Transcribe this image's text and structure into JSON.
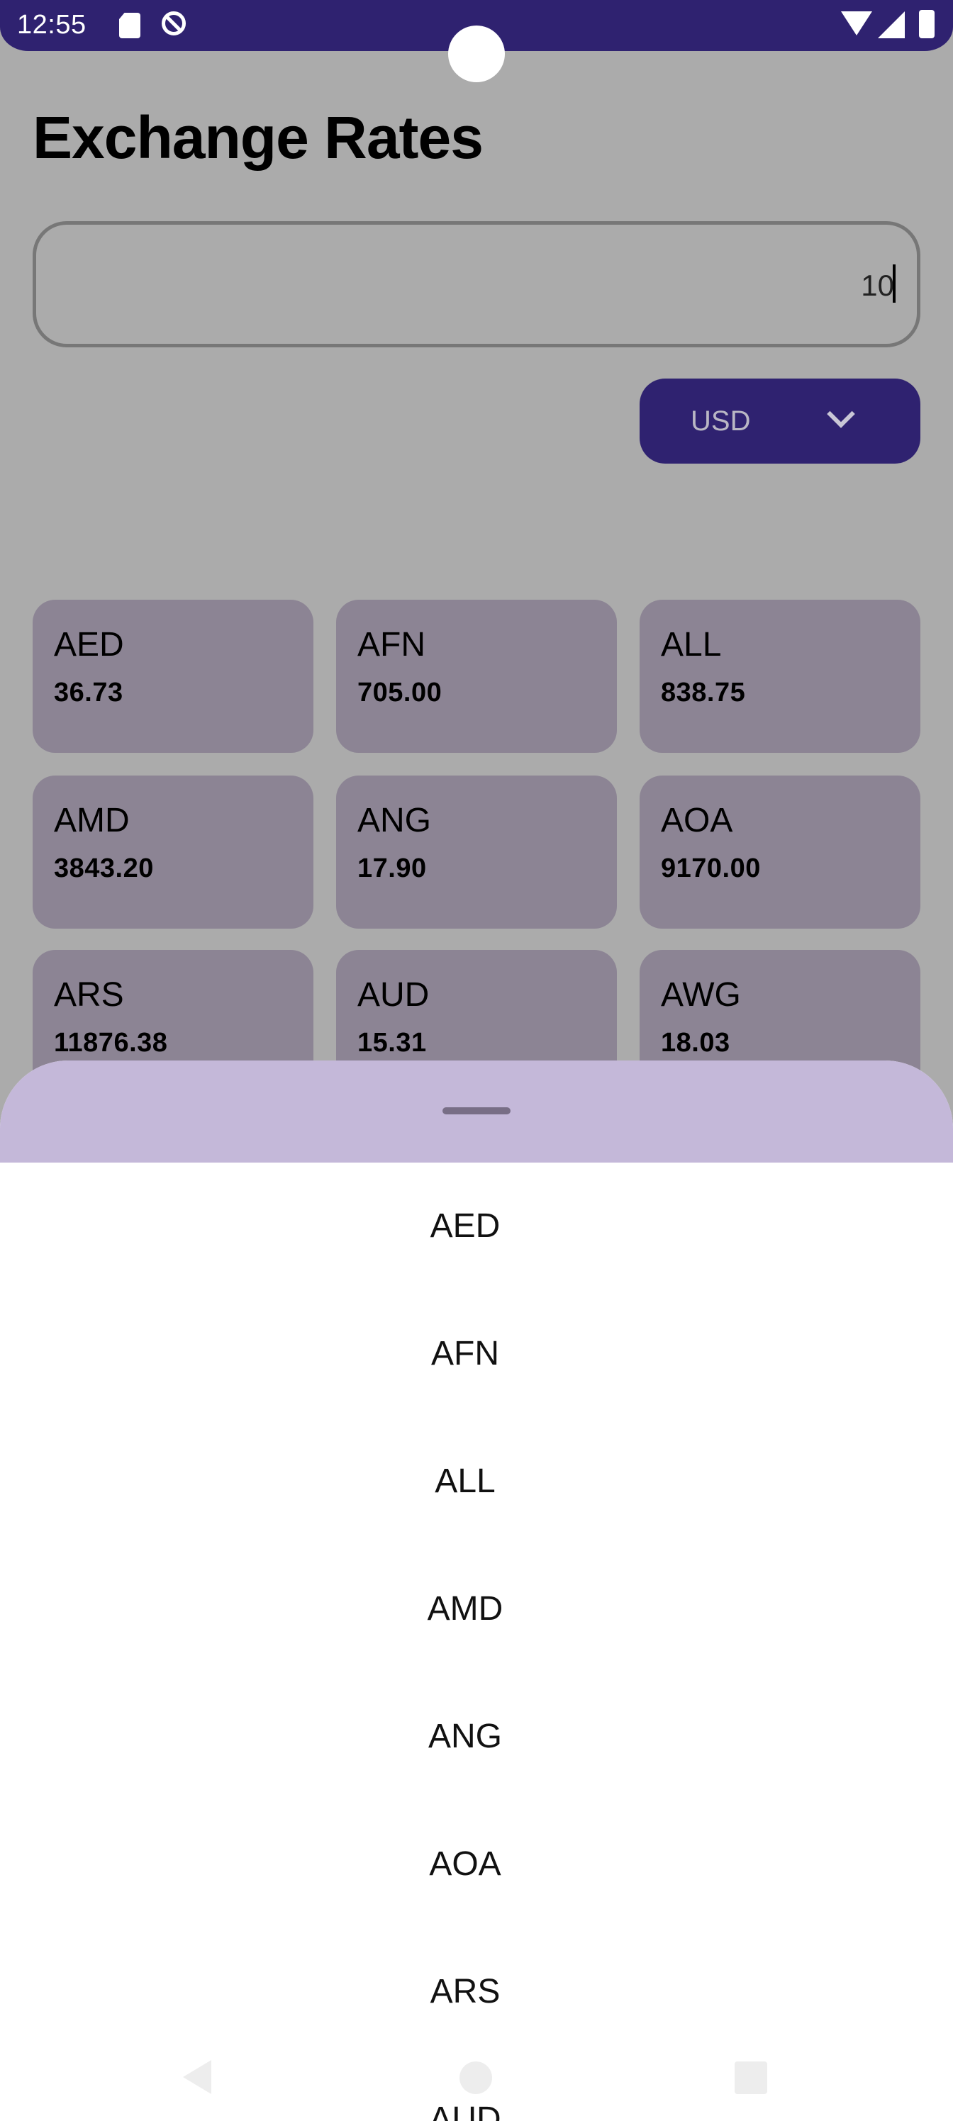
{
  "status_bar": {
    "time": "12:55",
    "icons": [
      "sd-card-icon",
      "sync-icon",
      "wifi-icon",
      "signal-icon",
      "battery-icon"
    ]
  },
  "header": {
    "title": "Exchange Rates"
  },
  "amount_input": {
    "value": "10"
  },
  "currency_select": {
    "selected": "USD",
    "icon": "chevron-down-icon"
  },
  "rates": [
    {
      "code": "AED",
      "value": "36.73"
    },
    {
      "code": "AFN",
      "value": "705.00"
    },
    {
      "code": "ALL",
      "value": "838.75"
    },
    {
      "code": "AMD",
      "value": "3843.20"
    },
    {
      "code": "ANG",
      "value": "17.90"
    },
    {
      "code": "AOA",
      "value": "9170.00"
    },
    {
      "code": "ARS",
      "value": "11876.38"
    },
    {
      "code": "AUD",
      "value": "15.31"
    },
    {
      "code": "AWG",
      "value": "18.03"
    }
  ],
  "currency_sheet": {
    "options": [
      "AED",
      "AFN",
      "ALL",
      "AMD",
      "ANG",
      "AOA",
      "ARS",
      "AUD"
    ]
  },
  "colors": {
    "status_bar": "#2f2270",
    "dim_background": "#ababab",
    "card": "#8c8494",
    "sheet_header": "#c4b8d9",
    "sheet_body": "#ffffff"
  }
}
